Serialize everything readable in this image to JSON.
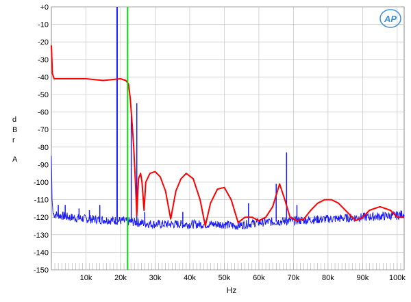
{
  "chart_data": {
    "type": "line",
    "logo": "AP",
    "xlabel": "Hz",
    "ylabel_letters": [
      "d",
      "B",
      "r",
      "A"
    ],
    "xlim": [
      0,
      102000
    ],
    "ylim": [
      -150,
      0
    ],
    "grid": true,
    "y_ticks": [
      0,
      -10,
      -20,
      -30,
      -40,
      -50,
      -60,
      -70,
      -80,
      -90,
      -100,
      -110,
      -120,
      -130,
      -140,
      -150
    ],
    "y_tick_labels": [
      "+0",
      "-10",
      "-20",
      "-30",
      "-40",
      "-50",
      "-60",
      "-70",
      "-80",
      "-90",
      "-100",
      "-110",
      "-120",
      "-130",
      "-140",
      "-150"
    ],
    "x_ticks": [
      10000,
      20000,
      30000,
      40000,
      50000,
      60000,
      70000,
      80000,
      90000,
      100000
    ],
    "x_tick_labels": [
      "10k",
      "20k",
      "30k",
      "40k",
      "50k",
      "60k",
      "70k",
      "80k",
      "90k",
      "100k"
    ],
    "marker_line": {
      "x": 22050,
      "color": "#00dd00"
    },
    "series": [
      {
        "color": "#1a1aff",
        "baseline": [
          [
            0,
            -118
          ],
          [
            5000,
            -120
          ],
          [
            10000,
            -121
          ],
          [
            20000,
            -122
          ],
          [
            25000,
            -123
          ],
          [
            30000,
            -124
          ],
          [
            40000,
            -124
          ],
          [
            50000,
            -124
          ],
          [
            53000,
            -125
          ],
          [
            60000,
            -123
          ],
          [
            70000,
            -122
          ],
          [
            80000,
            -121
          ],
          [
            90000,
            -120
          ],
          [
            100000,
            -119
          ],
          [
            102000,
            -118
          ]
        ],
        "spikes": [
          [
            19000,
            0
          ],
          [
            23100,
            -62
          ],
          [
            24700,
            -55
          ],
          [
            2000,
            -113
          ],
          [
            4000,
            -113
          ],
          [
            8000,
            -115
          ],
          [
            11000,
            -116
          ],
          [
            14000,
            -113
          ],
          [
            27000,
            -117
          ],
          [
            38000,
            -117
          ],
          [
            57000,
            -112
          ],
          [
            65000,
            -101
          ],
          [
            68000,
            -83
          ],
          [
            71000,
            -113
          ],
          [
            96000,
            -118
          ]
        ],
        "low_edge": [
          [
            0,
            -85
          ],
          [
            200,
            -110
          ],
          [
            500,
            -118
          ]
        ]
      },
      {
        "color": "#ff0000",
        "points": [
          [
            0,
            -22
          ],
          [
            300,
            -38
          ],
          [
            800,
            -41
          ],
          [
            5000,
            -41
          ],
          [
            10000,
            -41
          ],
          [
            15000,
            -42
          ],
          [
            20000,
            -41
          ],
          [
            21500,
            -42
          ],
          [
            22300,
            -44
          ],
          [
            22800,
            -52
          ],
          [
            23300,
            -65
          ],
          [
            23800,
            -80
          ],
          [
            24300,
            -100
          ],
          [
            24700,
            -119
          ],
          [
            25200,
            -98
          ],
          [
            25800,
            -95
          ],
          [
            26200,
            -100
          ],
          [
            26800,
            -116
          ],
          [
            27300,
            -100
          ],
          [
            28500,
            -95
          ],
          [
            30000,
            -94
          ],
          [
            31500,
            -97
          ],
          [
            33000,
            -105
          ],
          [
            34500,
            -121
          ],
          [
            36000,
            -105
          ],
          [
            37500,
            -98
          ],
          [
            39000,
            -95
          ],
          [
            41000,
            -98
          ],
          [
            43000,
            -110
          ],
          [
            44500,
            -125
          ],
          [
            46000,
            -112
          ],
          [
            48000,
            -104
          ],
          [
            50000,
            -103
          ],
          [
            52000,
            -110
          ],
          [
            54000,
            -123
          ],
          [
            56000,
            -120
          ],
          [
            58000,
            -120
          ],
          [
            60000,
            -122
          ],
          [
            62000,
            -120
          ],
          [
            64000,
            -114
          ],
          [
            66000,
            -101
          ],
          [
            67500,
            -110
          ],
          [
            69000,
            -120
          ],
          [
            71000,
            -122
          ],
          [
            73000,
            -121
          ],
          [
            75000,
            -116
          ],
          [
            77000,
            -112
          ],
          [
            79000,
            -110
          ],
          [
            81000,
            -110
          ],
          [
            83000,
            -112
          ],
          [
            86000,
            -118
          ],
          [
            88000,
            -122
          ],
          [
            90000,
            -120
          ],
          [
            92000,
            -116
          ],
          [
            95000,
            -114
          ],
          [
            98000,
            -116
          ],
          [
            100000,
            -120
          ],
          [
            102000,
            -120
          ]
        ]
      }
    ]
  }
}
